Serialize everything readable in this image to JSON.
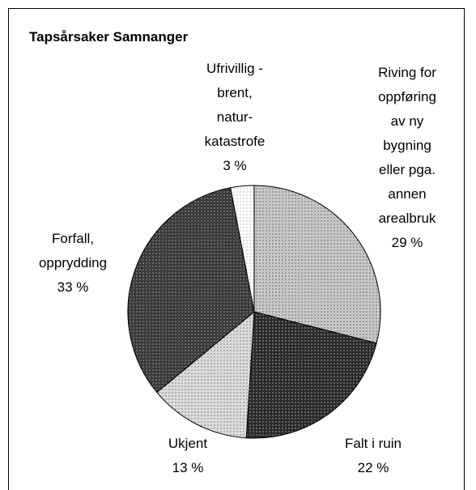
{
  "chart_data": {
    "type": "pie",
    "title": "Tapsårsaker Samnanger",
    "categories": [
      "Riving for\noppføring\nav ny\nbygning\neller pga.\nannen\narealbruk",
      "Falt i ruin",
      "Ukjent",
      "Forfall,\nopprydding",
      "Ufrivillig -\nbrent,\nnatur-\nkatastrofe"
    ],
    "values": [
      29,
      22,
      13,
      33,
      3
    ],
    "value_labels": [
      "29 %",
      "22 %",
      "13 %",
      "33 %",
      "3 %"
    ],
    "colors": [
      "#c8c8c8",
      "#2a2a2a",
      "#dcdcdc",
      "#3a3a3a",
      "#ffffff"
    ]
  }
}
